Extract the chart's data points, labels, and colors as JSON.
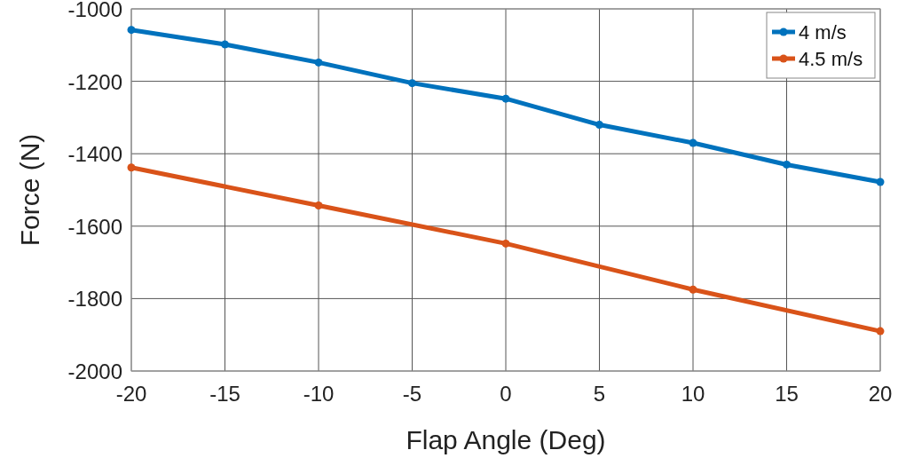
{
  "chart_data": {
    "type": "line",
    "xlabel": "Flap Angle (Deg)",
    "ylabel": "Force (N)",
    "x": [
      -20,
      -15,
      -10,
      -5,
      0,
      5,
      10,
      15,
      20
    ],
    "series": [
      {
        "name": "4 m/s",
        "color": "#0072bd",
        "values": [
          -1058,
          -1098,
          -1148,
          -1205,
          -1248,
          -1320,
          -1370,
          -1430,
          -1478
        ]
      },
      {
        "name": "4.5 m/s",
        "color": "#d95319",
        "x": [
          -20,
          -10,
          0,
          10,
          20
        ],
        "values": [
          -1438,
          -1543,
          -1648,
          -1775,
          -1890
        ]
      }
    ],
    "xlim": [
      -20,
      20
    ],
    "xticks": [
      -20,
      -15,
      -10,
      -5,
      0,
      5,
      10,
      15,
      20
    ],
    "ylim": [
      -2000,
      -1000
    ],
    "yticks": [
      -2000,
      -1800,
      -1600,
      -1400,
      -1200,
      -1000
    ],
    "grid": true,
    "legend": "top right",
    "marker": "circle",
    "line_style": "solid"
  }
}
